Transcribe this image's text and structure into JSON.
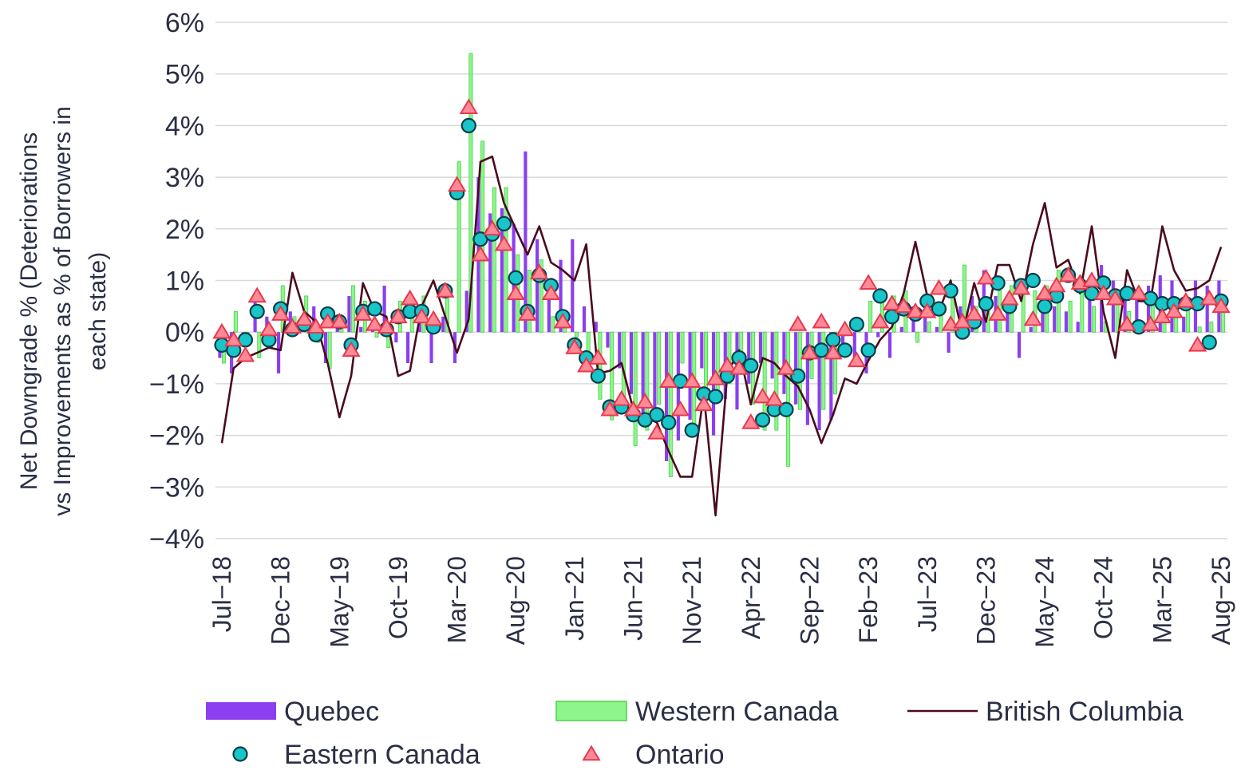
{
  "chart_data": {
    "type": "bar",
    "ylabel": "Net Downgrade % (Deteriorations vs Improvements as % of Borrowers in each state)",
    "ylim": [
      -4,
      6
    ],
    "yticks": [
      "6%",
      "5%",
      "4%",
      "3%",
      "2%",
      "1%",
      "0%",
      "−1%",
      "−2%",
      "−3%",
      "−4%"
    ],
    "ytick_values": [
      6,
      5,
      4,
      3,
      2,
      1,
      0,
      -1,
      -2,
      -3,
      -4
    ],
    "xtick_labels": [
      "Jul−18",
      "Dec−18",
      "May−19",
      "Oct−19",
      "Mar−20",
      "Aug−20",
      "Jan−21",
      "Jun−21",
      "Nov−21",
      "Apr−22",
      "Sep−22",
      "Feb−23",
      "Jul−23",
      "Dec−23",
      "May−24",
      "Oct−24",
      "Mar−25",
      "Aug−25"
    ],
    "grid": true,
    "legend_position": "bottom",
    "colors": {
      "quebec": "#8b3ff0",
      "western_canada": "#8ef58c",
      "western_canada_edge": "#49d14a",
      "british_columbia": "#4a0a1e",
      "eastern_canada": "#18c5c8",
      "eastern_canada_edge": "#0b3d4a",
      "ontario": "#ff8a95",
      "ontario_edge": "#e8384f",
      "grid": "#d9d9d9",
      "text": "#2b2f45"
    },
    "legend": {
      "quebec": "Quebec",
      "western_canada": "Western Canada",
      "british_columbia": "British Columbia",
      "eastern_canada": "Eastern Canada",
      "ontario": "Ontario"
    },
    "x_start": "2018-07",
    "x_end": "2025-08",
    "series": [
      {
        "name": "Quebec",
        "kind": "bar",
        "values": [
          -0.5,
          -0.8,
          -0.1,
          0.7,
          0.3,
          -0.8,
          0.4,
          0.1,
          0.5,
          -0.6,
          0.3,
          0.7,
          0.1,
          0.2,
          0.9,
          -0.2,
          -0.6,
          0.2,
          -0.6,
          0.3,
          -0.6,
          0.8,
          3.0,
          2.3,
          2.4,
          2.1,
          3.5,
          1.8,
          0.7,
          1.4,
          1.8,
          0.5,
          0.2,
          -0.3,
          -0.7,
          -1.2,
          -1.8,
          -1.7,
          -2.5,
          -2.1,
          -1.7,
          -0.7,
          -2.0,
          -1.3,
          -1.5,
          -1.0,
          -0.6,
          -0.9,
          -1.2,
          -1.4,
          -1.8,
          -1.9,
          -1.7,
          -0.4,
          -0.5,
          -0.8,
          -0.1,
          -0.5,
          0.1,
          0.5,
          0.4,
          0.1,
          -0.4,
          0.5,
          0.7,
          1.2,
          0.7,
          0.5,
          -0.5,
          0.1,
          0.6,
          0.5,
          0.4,
          0.2,
          1.0,
          1.3,
          1.0,
          0.9,
          0.8,
          0.9,
          1.1,
          1.0,
          0.3,
          1.0,
          0.9,
          1.0,
          0.6,
          0.4,
          0.3,
          1.1,
          0.8,
          0.8,
          0.5,
          0.7,
          0.1,
          0.4,
          0.6,
          0.4,
          0.4,
          0.1,
          0.3,
          0.1,
          -0.5,
          0.8,
          0.5,
          -0.2,
          0.6,
          0.3
        ],
        "values_trim": 86
      },
      {
        "name": "Western Canada",
        "kind": "bar",
        "values": [
          -0.6,
          0.4,
          -0.2,
          -0.5,
          -0.3,
          0.9,
          0.3,
          0.7,
          -0.2,
          -0.7,
          0.2,
          0.9,
          0.6,
          -0.1,
          -0.3,
          0.6,
          0.5,
          0.7,
          0.1,
          0.8,
          3.3,
          5.4,
          3.7,
          2.8,
          2.8,
          1.5,
          1.2,
          1.4,
          0.3,
          0.2,
          -0.1,
          -0.6,
          -1.3,
          -1.7,
          -1.5,
          -2.2,
          -1.9,
          -1.4,
          -2.8,
          -0.6,
          -2.0,
          -1.2,
          -1.2,
          -1.0,
          -0.8,
          -1.4,
          -1.9,
          -1.9,
          -2.6,
          -1.5,
          -0.9,
          -1.5,
          -1.2,
          0.0,
          0.2,
          0.6,
          0.7,
          0.7,
          0.8,
          -0.2,
          0.2,
          0.4,
          0.9,
          1.3,
          0.5,
          0.6,
          0.8,
          0.9,
          1.0,
          0.8,
          0.9,
          1.2,
          0.6,
          1.1,
          0.5,
          0.2,
          0.6,
          0.4,
          0.2,
          0.6,
          0.2,
          0.3,
          0.5,
          0.1,
          0.2,
          0.6,
          0.2
        ],
        "values_trim": 86
      },
      {
        "name": "British Columbia",
        "kind": "line",
        "values": [
          -2.15,
          -0.7,
          -0.5,
          -0.4,
          -0.3,
          -0.35,
          1.15,
          0.4,
          0.2,
          -0.6,
          -1.65,
          -0.85,
          0.95,
          0.4,
          0.3,
          -0.85,
          -0.75,
          0.5,
          1.0,
          0.3,
          -0.4,
          0.25,
          3.3,
          3.4,
          2.5,
          2.0,
          1.5,
          2.05,
          1.35,
          1.2,
          1.0,
          1.7,
          -0.8,
          -0.75,
          -0.6,
          -1.5,
          -1.65,
          -1.75,
          -2.3,
          -2.8,
          -2.8,
          -1.2,
          -3.55,
          -0.8,
          -0.35,
          -1.4,
          -0.5,
          -0.6,
          -0.85,
          -1.05,
          -1.5,
          -2.15,
          -1.6,
          -0.9,
          -1.0,
          -0.55,
          -0.15,
          0.1,
          0.75,
          1.75,
          0.7,
          0.4,
          1.0,
          -0.05,
          0.95,
          0.2,
          1.3,
          1.3,
          0.6,
          1.7,
          2.5,
          1.25,
          1.4,
          0.75,
          2.05,
          0.4,
          -0.5,
          1.2,
          0.6,
          0.6,
          2.05,
          1.2,
          0.8,
          0.85,
          1.0,
          1.65,
          0.5,
          0.05,
          0.15,
          0.4,
          -0.65,
          0.75,
          0.6,
          0.75
        ],
        "values_trim": 86
      },
      {
        "name": "Eastern Canada",
        "kind": "marker-circle",
        "values": [
          -0.25,
          -0.35,
          -0.15,
          0.4,
          -0.15,
          0.45,
          0.05,
          0.15,
          -0.05,
          0.35,
          0.2,
          -0.25,
          0.4,
          0.45,
          0.05,
          0.3,
          0.4,
          0.4,
          0.1,
          0.8,
          2.7,
          4.0,
          1.8,
          1.9,
          2.1,
          1.05,
          0.4,
          1.1,
          0.9,
          0.3,
          -0.25,
          -0.5,
          -0.85,
          -1.45,
          -1.45,
          -1.6,
          -1.7,
          -1.6,
          -1.75,
          -0.95,
          -1.9,
          -1.2,
          -1.25,
          -0.85,
          -0.5,
          -0.65,
          -1.7,
          -1.5,
          -1.5,
          -0.85,
          -0.4,
          -0.35,
          -0.15,
          -0.35,
          0.15,
          -0.35,
          0.7,
          0.3,
          0.45,
          0.35,
          0.6,
          0.45,
          0.8,
          0.0,
          0.2,
          0.55,
          0.95,
          0.5,
          0.9,
          1.0,
          0.5,
          0.7,
          1.1,
          0.9,
          0.75,
          0.95,
          0.7,
          0.75,
          0.1,
          0.65,
          0.55,
          0.55,
          0.55,
          0.55,
          -0.2,
          0.6,
          0.35
        ],
        "values_trim": 86
      },
      {
        "name": "Ontario",
        "kind": "marker-triangle",
        "values": [
          0.0,
          -0.15,
          -0.45,
          0.7,
          0.05,
          0.35,
          0.1,
          0.25,
          0.1,
          0.2,
          0.2,
          -0.35,
          0.35,
          0.15,
          0.1,
          0.3,
          0.65,
          0.3,
          0.25,
          0.8,
          2.85,
          4.35,
          1.5,
          2.0,
          1.7,
          0.75,
          0.35,
          1.15,
          0.75,
          0.2,
          -0.3,
          -0.65,
          -0.5,
          -1.5,
          -1.3,
          -1.5,
          -1.35,
          -1.95,
          -0.95,
          -1.5,
          -0.95,
          -1.4,
          -0.9,
          -0.65,
          -0.7,
          -1.75,
          -1.25,
          -1.3,
          -0.7,
          0.15,
          -0.4,
          0.2,
          -0.4,
          0.05,
          -0.55,
          0.95,
          0.2,
          0.55,
          0.5,
          0.4,
          0.4,
          0.85,
          0.15,
          0.2,
          0.35,
          1.05,
          0.35,
          0.65,
          0.85,
          0.25,
          0.75,
          0.9,
          1.1,
          0.95,
          1.0,
          0.75,
          0.65,
          0.15,
          0.75,
          0.15,
          0.3,
          0.4,
          0.6,
          -0.25,
          0.65,
          0.5
        ],
        "values_trim": 86
      }
    ]
  }
}
